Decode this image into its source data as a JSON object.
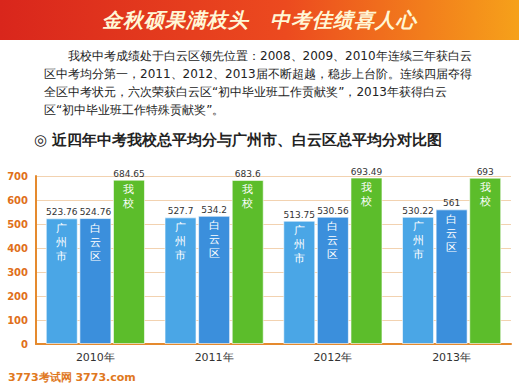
{
  "header": {
    "title": "金秋硕果满枝头　中考佳绩喜人心"
  },
  "paragraph": "我校中考成绩处于白云区领先位置：2008、2009、2010年连续三年获白云区中考均分第一，2011、2012、2013届不断超越，稳步上台阶。连续四届夺得全区中考状元，六次荣获白云区“初中毕业班工作贡献奖”，2013年获得白云区“初中毕业班工作特殊贡献奖”。",
  "watermark": [
    "3773考试网",
    "3773.com"
  ],
  "chart_data": {
    "type": "bar",
    "title": "◎ 近四年中考我校总平均分与广州市、白云区总平均分对比图",
    "categories": [
      "2010年",
      "2011年",
      "2012年",
      "2013年"
    ],
    "series": [
      {
        "name": "广州市",
        "color": "#4aa6e6",
        "values": [
          523.76,
          527.7,
          513.75,
          530.22
        ]
      },
      {
        "name": "白云区",
        "color": "#3b8fdc",
        "values": [
          524.76,
          534.2,
          530.56,
          561
        ]
      },
      {
        "name": "我校",
        "color": "#5cbd2b",
        "values": [
          684.65,
          683.6,
          693.49,
          693
        ]
      }
    ],
    "ylim": [
      0,
      700
    ],
    "yticks": [
      0,
      100,
      200,
      300,
      400,
      500,
      600,
      700
    ],
    "grid": true,
    "data_labels": true
  }
}
